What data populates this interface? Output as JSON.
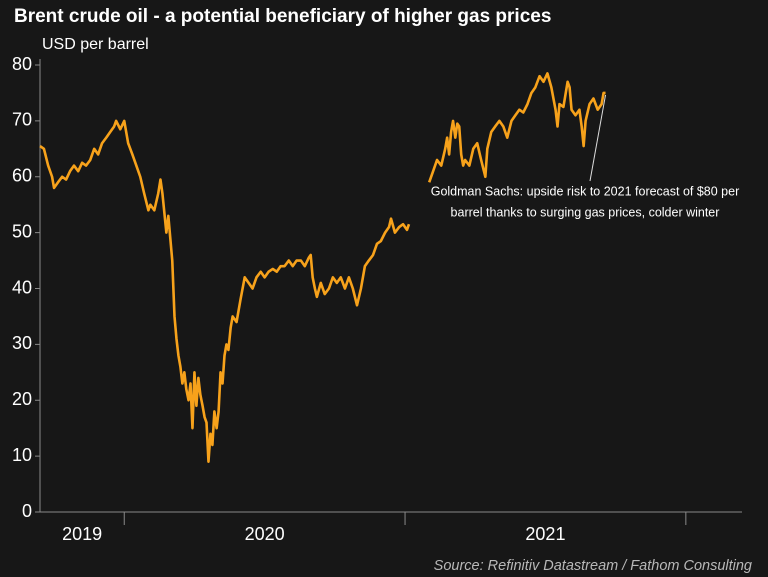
{
  "chart_data": {
    "type": "line",
    "title": "Brent crude oil - a potential beneficiary of higher gas prices",
    "subtitle": "USD per barrel",
    "source": "Source: Refinitiv Datastream / Fathom Consulting",
    "annotation": [
      "Goldman Sachs: upside risk to 2021 forecast of $80 per",
      "barrel thanks to surging gas prices, colder winter"
    ],
    "color": "#f7a21b",
    "xlim": [
      2019.7,
      2022.2
    ],
    "xticks": [
      2020,
      2021,
      2022
    ],
    "xlabels": [
      {
        "value": 2019,
        "label": "2019"
      },
      {
        "value": 2020,
        "label": "2020"
      },
      {
        "value": 2021,
        "label": "2021"
      }
    ],
    "ylim": [
      0,
      80
    ],
    "yticks": [
      0,
      10,
      20,
      30,
      40,
      50,
      60,
      70,
      80
    ],
    "x": [
      2019.7,
      2019.714,
      2019.729,
      2019.743,
      2019.75,
      2019.764,
      2019.779,
      2019.793,
      2019.807,
      2019.821,
      2019.836,
      2019.85,
      2019.864,
      2019.879,
      2019.893,
      2019.907,
      2019.921,
      2019.936,
      2019.95,
      2019.964,
      2019.971,
      2019.986,
      2020,
      2020.014,
      2020.029,
      2020.043,
      2020.057,
      2020.071,
      2020.086,
      2020.093,
      2020.107,
      2020.121,
      2020.129,
      2020.136,
      2020.15,
      2020.157,
      2020.171,
      2020.179,
      2020.186,
      2020.193,
      2020.2,
      2020.207,
      2020.214,
      2020.221,
      2020.229,
      2020.236,
      2020.243,
      2020.25,
      2020.257,
      2020.264,
      2020.271,
      2020.279,
      2020.286,
      2020.293,
      2020.3,
      2020.307,
      2020.314,
      2020.321,
      2020.329,
      2020.336,
      2020.343,
      2020.35,
      2020.357,
      2020.364,
      2020.371,
      2020.379,
      2020.386,
      2020.4,
      2020.414,
      2020.429,
      2020.443,
      2020.457,
      2020.471,
      2020.486,
      2020.5,
      2020.514,
      2020.529,
      2020.543,
      2020.557,
      2020.571,
      2020.586,
      2020.6,
      2020.614,
      2020.629,
      2020.643,
      2020.657,
      2020.664,
      2020.671,
      2020.679,
      2020.686,
      2020.7,
      2020.714,
      2020.729,
      2020.743,
      2020.757,
      2020.771,
      2020.786,
      2020.8,
      2020.814,
      2020.829,
      2020.843,
      2020.857,
      2020.871,
      2020.886,
      2020.9,
      2020.914,
      2020.929,
      2020.943,
      2020.95,
      2020.964,
      2020.979,
      2020.993,
      2021.007,
      2021.014,
      2021.05,
      2021.086,
      2021.1,
      2021.114,
      2021.129,
      2021.143,
      2021.15,
      2021.157,
      2021.164,
      2021.171,
      2021.179,
      2021.186,
      2021.193,
      2021.2,
      2021.207,
      2021.214,
      2021.229,
      2021.243,
      2021.257,
      2021.271,
      2021.286,
      2021.293,
      2021.307,
      2021.321,
      2021.336,
      2021.35,
      2021.364,
      2021.379,
      2021.393,
      2021.407,
      2021.421,
      2021.436,
      2021.45,
      2021.464,
      2021.479,
      2021.493,
      2021.507,
      2021.521,
      2021.536,
      2021.543,
      2021.55,
      2021.564,
      2021.579,
      2021.586,
      2021.593,
      2021.607,
      2021.621,
      2021.629,
      2021.636,
      2021.643,
      2021.657,
      2021.671,
      2021.686,
      2021.7,
      2021.707,
      2021.714
    ],
    "values": [
      65.5,
      65,
      62,
      60,
      58,
      59,
      60,
      59.5,
      61,
      62,
      61,
      62.5,
      62,
      63,
      65,
      64,
      66,
      67,
      68,
      69,
      70,
      68.5,
      70,
      66,
      64,
      62,
      60,
      57,
      54,
      55,
      54,
      57,
      59.5,
      57,
      50,
      53,
      45,
      35,
      31,
      28,
      26,
      23,
      25,
      22,
      20,
      23,
      15,
      25,
      19,
      24,
      21,
      19,
      17,
      16,
      9,
      14,
      12,
      18,
      15,
      18,
      25,
      23,
      28,
      30,
      29,
      33,
      35,
      34,
      38,
      42,
      41,
      40,
      42,
      43,
      42,
      43,
      43.5,
      43,
      44,
      44,
      45,
      44,
      45,
      45,
      44,
      45.5,
      46,
      42,
      40,
      38.5,
      41,
      39,
      40,
      42,
      41,
      42,
      40,
      42,
      40,
      37,
      40,
      44,
      45,
      46,
      48,
      48.5,
      50,
      51,
      52.5,
      50,
      51,
      51.5,
      50.5,
      51.5,
      null,
      59,
      61,
      63,
      62,
      65,
      67,
      64,
      68,
      70,
      67,
      69.5,
      69,
      64,
      62,
      63,
      62,
      65,
      66,
      63,
      60,
      65,
      68,
      69,
      70,
      69,
      67,
      70,
      71,
      72,
      71.5,
      73,
      75,
      76,
      78,
      77,
      78.5,
      76,
      72,
      69,
      73,
      72.5,
      77,
      76,
      72,
      71,
      72,
      69,
      65.5,
      70,
      73,
      74,
      72,
      73,
      75,
      75
    ]
  }
}
